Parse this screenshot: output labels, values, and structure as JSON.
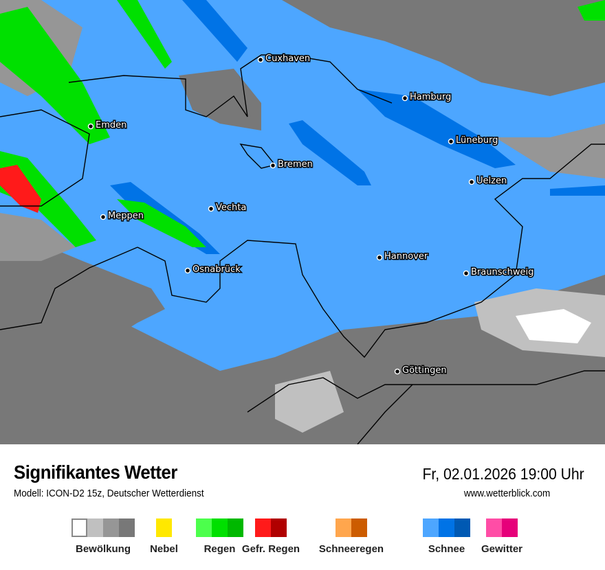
{
  "header": {
    "title": "Signifikantes Wetter",
    "subtitle": "Modell: ICON-D2 15z, Deutscher Wetterdienst",
    "datetime": "Fr, 02.01.2026 19:00 Uhr",
    "website": "www.wetterblick.com"
  },
  "map": {
    "background_color": "#4da6ff",
    "cities": [
      "Cuxhaven",
      "Hamburg",
      "Emden",
      "Lüneburg",
      "Bremen",
      "Uelzen",
      "Vechta",
      "Meppen",
      "Hannover",
      "Braunschweig",
      "Osnabrück",
      "Göttingen"
    ]
  },
  "legend": [
    {
      "label": "Bewölkung",
      "colors": [
        "#ffffff",
        "#c0c0c0",
        "#969696",
        "#787878"
      ]
    },
    {
      "label": "Nebel",
      "colors": [
        "#ffe800"
      ]
    },
    {
      "label": "Regen",
      "colors": [
        "#4cff4c",
        "#00e000",
        "#00b800"
      ]
    },
    {
      "label": "Gefr. Regen",
      "colors": [
        "#ff1a1a",
        "#b00000"
      ]
    },
    {
      "label": "Schneeregen",
      "colors": [
        "#ffa64d",
        "#cc5c00"
      ]
    },
    {
      "label": "Schnee",
      "colors": [
        "#4da6ff",
        "#0073e6",
        "#0059b3"
      ]
    },
    {
      "label": "Gewitter",
      "colors": [
        "#ff4da6",
        "#e6007a"
      ]
    }
  ]
}
